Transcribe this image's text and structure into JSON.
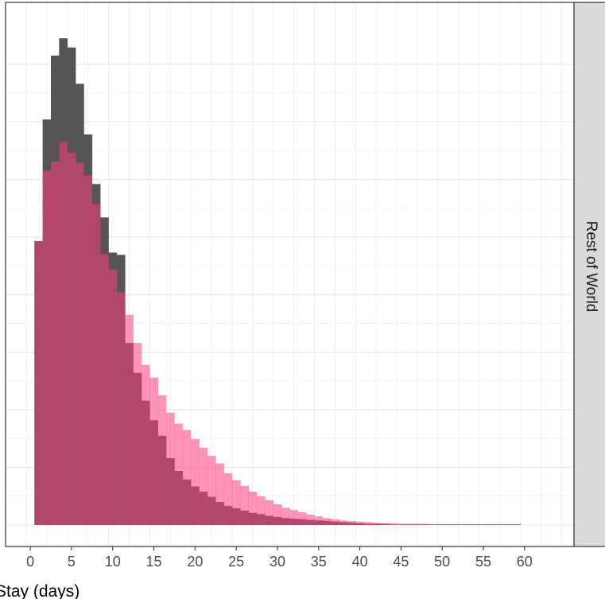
{
  "chart_data": {
    "type": "bar",
    "subtype": "overlaid-histogram",
    "title": "",
    "xlabel": "Stay (days)",
    "ylabel": "",
    "facet_label": "Rest of World",
    "xlim": [
      -3,
      66
    ],
    "ylim": [
      0,
      0.087
    ],
    "x_ticks": [
      0,
      5,
      10,
      15,
      20,
      25,
      30,
      35,
      40,
      45,
      50,
      55,
      60
    ],
    "y_ticks_unlabeled": [
      0.01,
      0.02,
      0.03,
      0.04,
      0.05,
      0.06,
      0.07,
      0.08
    ],
    "grid": true,
    "legend": "none",
    "bin_start": 0.5,
    "bin_width": 1,
    "series": [
      {
        "color": "#555555",
        "opacity": 1,
        "values": [
          0.0493,
          0.0704,
          0.0815,
          0.0845,
          0.0829,
          0.0766,
          0.0678,
          0.0592,
          0.0534,
          0.0473,
          0.0469,
          0.0316,
          0.0264,
          0.0216,
          0.0182,
          0.0155,
          0.0116,
          0.0094,
          0.0079,
          0.0067,
          0.0058,
          0.0049,
          0.004,
          0.0033,
          0.0029,
          0.0025,
          0.0021,
          0.0019,
          0.0016,
          0.0014,
          0.0012,
          0.0011,
          0.001,
          0.0009,
          0.0008,
          0.0007,
          0.0006,
          0.0005,
          0.0004,
          0.0003,
          0.0002,
          0.0002,
          0.0002,
          0.0001,
          0.0001,
          0.0001,
          0.0001,
          0.0001,
          0.0001,
          0.0001,
          0.0001,
          0.0001,
          0.0001,
          0.0001,
          0.0001,
          0.0001,
          0.0001,
          0.0001,
          0.0001
        ]
      },
      {
        "color": "#ff3d7f",
        "opacity": 0.55,
        "values": [
          0.0493,
          0.0615,
          0.0631,
          0.0665,
          0.0646,
          0.0629,
          0.0607,
          0.0557,
          0.047,
          0.0444,
          0.0404,
          0.0365,
          0.0316,
          0.0278,
          0.0256,
          0.0225,
          0.0195,
          0.0176,
          0.0165,
          0.0149,
          0.0134,
          0.012,
          0.0107,
          0.009,
          0.0078,
          0.0068,
          0.0058,
          0.005,
          0.0043,
          0.0036,
          0.003,
          0.0026,
          0.0022,
          0.0018,
          0.0015,
          0.0012,
          0.001,
          0.0008,
          0.0007,
          0.0006,
          0.0005,
          0.0004,
          0.0003,
          0.0003,
          0.0002,
          0.0002,
          0.0002,
          0.0002,
          0.0001,
          0.0001,
          0.0001,
          0.0001,
          0.0001,
          0.0001,
          0.0001,
          0.0001,
          0.0001,
          0.0001,
          0.0001
        ]
      }
    ]
  }
}
